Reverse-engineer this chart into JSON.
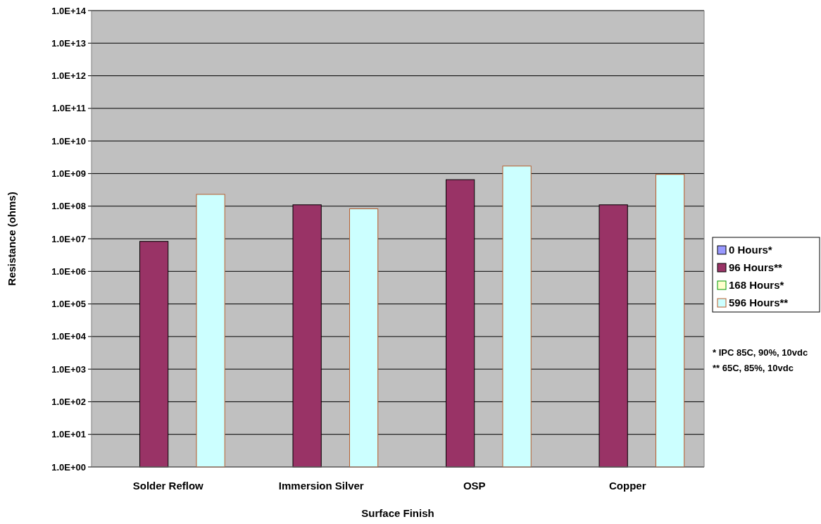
{
  "chart_data": {
    "type": "bar",
    "xlabel": "Surface Finish",
    "ylabel": "Resistance (ohms)",
    "categories": [
      "Solder Reflow",
      "Immersion Silver",
      "OSP",
      "Copper"
    ],
    "series": [
      {
        "name": "0 Hours*",
        "color": "#9999ff",
        "values": [
          null,
          null,
          null,
          null
        ]
      },
      {
        "name": "96 Hours**",
        "color": "#993366",
        "values": [
          8300000.0,
          110000000.0,
          650000000.0,
          110000000.0
        ]
      },
      {
        "name": "168 Hours*",
        "color": "#ffffcc",
        "values": [
          null,
          null,
          null,
          null
        ]
      },
      {
        "name": "596 Hours**",
        "color": "#ccffff",
        "values": [
          230000000.0,
          83000000.0,
          1700000000.0,
          940000000.0
        ]
      }
    ],
    "log": true,
    "ylim": [
      1,
      100000000000000.0
    ],
    "yticks": [
      {
        "value": 1,
        "label": "1.0E+00"
      },
      {
        "value": 10.0,
        "label": "1.0E+01"
      },
      {
        "value": 100.0,
        "label": "1.0E+02"
      },
      {
        "value": 1000.0,
        "label": "1.0E+03"
      },
      {
        "value": 10000.0,
        "label": "1.0E+04"
      },
      {
        "value": 100000.0,
        "label": "1.0E+05"
      },
      {
        "value": 1000000.0,
        "label": "1.0E+06"
      },
      {
        "value": 10000000.0,
        "label": "1.0E+07"
      },
      {
        "value": 100000000.0,
        "label": "1.0E+08"
      },
      {
        "value": 1000000000.0,
        "label": "1.0E+09"
      },
      {
        "value": 10000000000.0,
        "label": "1.0E+10"
      },
      {
        "value": 100000000000.0,
        "label": "1.0E+11"
      },
      {
        "value": 1000000000000.0,
        "label": "1.0E+12"
      },
      {
        "value": 10000000000000.0,
        "label": "1.0E+13"
      },
      {
        "value": 100000000000000.0,
        "label": "1.0E+14"
      }
    ],
    "grid": "y",
    "legend": "right",
    "annotations": [
      "* IPC 85C, 90%, 10vdc",
      "** 65C, 85%, 10vdc"
    ]
  }
}
